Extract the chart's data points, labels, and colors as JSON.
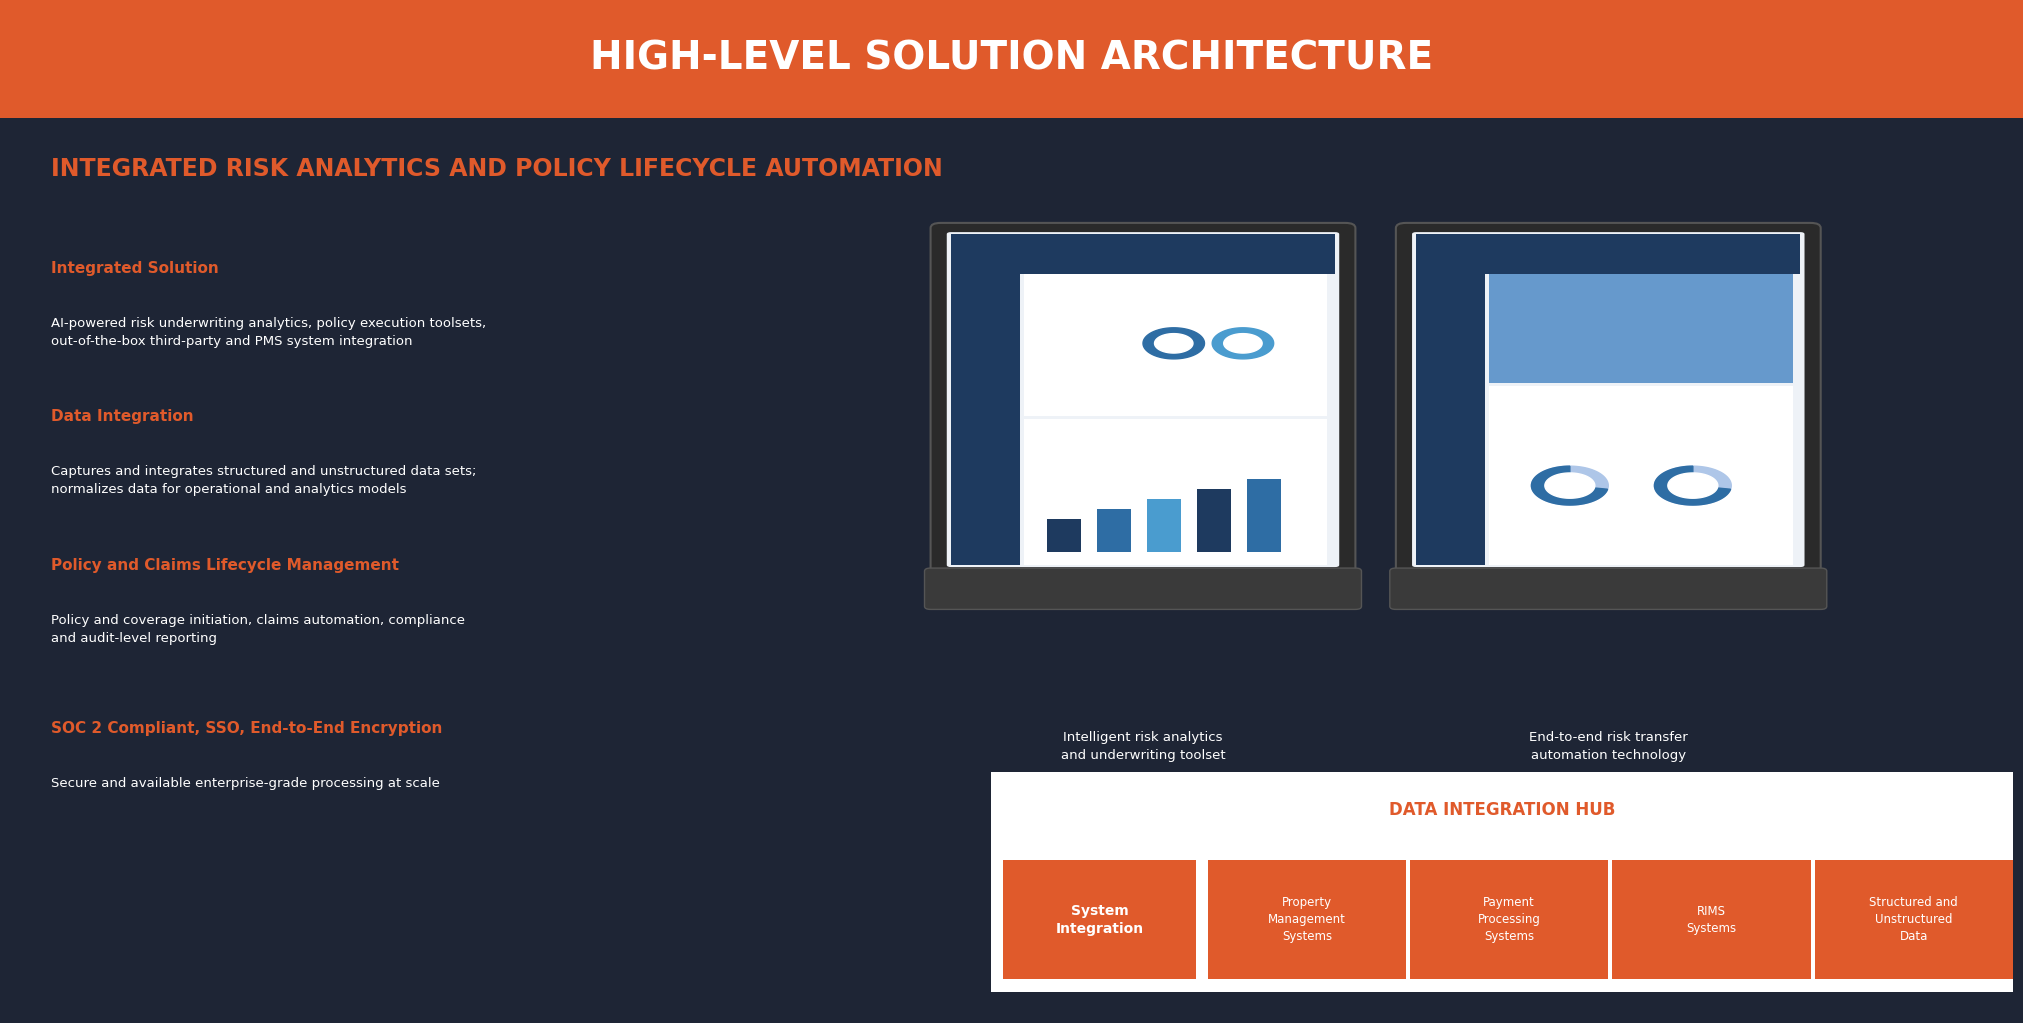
{
  "title": "HIGH-LEVEL SOLUTION ARCHITECTURE",
  "title_bg": "#E05A2B",
  "title_color": "#FFFFFF",
  "bg_color": "#1E2535",
  "subtitle": "INTEGRATED RISK ANALYTICS AND POLICY LIFECYCLE AUTOMATION",
  "subtitle_color": "#E05A2B",
  "orange_color": "#E05A2B",
  "white_color": "#FFFFFF",
  "gray_color": "#CCCCCC",
  "sections": [
    {
      "heading": "Integrated Solution",
      "body": "AI-powered risk underwriting analytics, policy execution toolsets,\nout-of-the-box third-party and PMS system integration"
    },
    {
      "heading": "Data Integration",
      "body": "Captures and integrates structured and unstructured data sets;\nnormalizes data for operational and analytics models"
    },
    {
      "heading": "Policy and Claims Lifecycle Management",
      "body": "Policy and coverage initiation, claims automation, compliance\nand audit-level reporting"
    },
    {
      "heading": "SOC 2 Compliant, SSO, End-to-End Encryption",
      "body": "Secure and available enterprise-grade processing at scale"
    }
  ],
  "laptop1_caption": "Intelligent risk analytics\nand underwriting toolset",
  "laptop2_caption": "End-to-end risk transfer\nautomation technology",
  "hub_title": "DATA INTEGRATION HUB",
  "hub_title_color": "#E05A2B",
  "hub_bg": "#FFFFFF",
  "system_integration_label": "System\nIntegration",
  "integration_items": [
    "Property\nManagement\nSystems",
    "Payment\nProcessing\nSystems",
    "RIMS\nSystems",
    "Structured and\nUnstructured\nData"
  ],
  "integration_bg": "#E05A2B",
  "integration_text": "#FFFFFF"
}
